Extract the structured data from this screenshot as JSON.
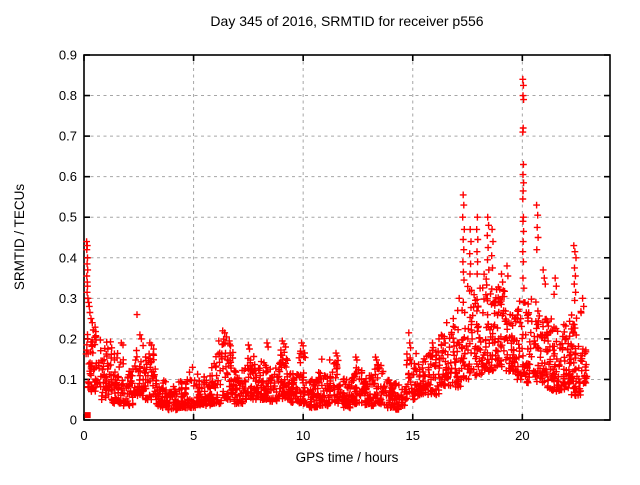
{
  "chart_data": {
    "type": "scatter",
    "title": "Day 345 of 2016, SRMTID for receiver p556",
    "xlabel": "GPS time / hours",
    "ylabel": "SRMTID / TECUs",
    "xlim": [
      0,
      24
    ],
    "ylim": [
      0,
      0.9
    ],
    "xticks": [
      0,
      5,
      10,
      15,
      20
    ],
    "xtick_labels": [
      "0",
      "5",
      "10",
      "15",
      "20"
    ],
    "yticks": [
      0,
      0.1,
      0.2,
      0.3,
      0.4,
      0.5,
      0.6,
      0.7,
      0.8,
      0.9
    ],
    "ytick_labels": [
      "0",
      "0.1",
      "0.2",
      "0.3",
      "0.4",
      "0.5",
      "0.6",
      "0.7",
      "0.8",
      "0.9"
    ],
    "grid": true,
    "legend": "none",
    "marker": "plus",
    "marker_color": "#ff0000",
    "grid_color": "#a6a6a6",
    "axis_color": "#000000",
    "background_color": "#ffffff",
    "origin_square_point": [
      0.17,
      0.012
    ],
    "max_point": [
      20.0,
      0.84
    ],
    "point_bands": [
      [
        0.05,
        0.3,
        0.08,
        0.23,
        14
      ],
      [
        0.3,
        0.8,
        0.07,
        0.23,
        48
      ],
      [
        0.8,
        1.3,
        0.05,
        0.2,
        46
      ],
      [
        1.3,
        1.8,
        0.04,
        0.17,
        44
      ],
      [
        1.8,
        2.3,
        0.035,
        0.13,
        40
      ],
      [
        2.3,
        2.8,
        0.06,
        0.2,
        42
      ],
      [
        2.8,
        3.3,
        0.05,
        0.18,
        42
      ],
      [
        3.3,
        3.8,
        0.03,
        0.1,
        40
      ],
      [
        3.8,
        4.3,
        0.025,
        0.085,
        40
      ],
      [
        4.3,
        4.8,
        0.03,
        0.1,
        40
      ],
      [
        4.8,
        5.3,
        0.03,
        0.12,
        40
      ],
      [
        5.3,
        5.8,
        0.035,
        0.11,
        40
      ],
      [
        5.8,
        6.3,
        0.04,
        0.17,
        42
      ],
      [
        6.3,
        6.8,
        0.05,
        0.2,
        44
      ],
      [
        6.8,
        7.3,
        0.04,
        0.13,
        42
      ],
      [
        7.3,
        7.8,
        0.05,
        0.16,
        42
      ],
      [
        7.8,
        8.3,
        0.05,
        0.145,
        44
      ],
      [
        8.3,
        8.8,
        0.045,
        0.13,
        42
      ],
      [
        8.8,
        9.3,
        0.05,
        0.175,
        44
      ],
      [
        9.3,
        9.8,
        0.04,
        0.12,
        42
      ],
      [
        9.8,
        10.2,
        0.04,
        0.17,
        36
      ],
      [
        10.2,
        10.7,
        0.03,
        0.1,
        44
      ],
      [
        10.7,
        11.2,
        0.035,
        0.12,
        44
      ],
      [
        11.2,
        11.7,
        0.04,
        0.15,
        44
      ],
      [
        11.7,
        12.2,
        0.03,
        0.105,
        44
      ],
      [
        12.2,
        12.7,
        0.04,
        0.13,
        44
      ],
      [
        12.7,
        13.2,
        0.035,
        0.11,
        44
      ],
      [
        13.2,
        13.7,
        0.04,
        0.14,
        42
      ],
      [
        13.7,
        14.2,
        0.03,
        0.1,
        40
      ],
      [
        14.2,
        14.7,
        0.025,
        0.09,
        36
      ],
      [
        14.7,
        15.2,
        0.05,
        0.17,
        36
      ],
      [
        15.2,
        15.7,
        0.06,
        0.16,
        40
      ],
      [
        15.7,
        16.2,
        0.06,
        0.18,
        40
      ],
      [
        16.2,
        16.7,
        0.08,
        0.22,
        44
      ],
      [
        16.7,
        17.2,
        0.08,
        0.25,
        44
      ],
      [
        17.2,
        17.7,
        0.1,
        0.33,
        46
      ],
      [
        17.7,
        18.2,
        0.11,
        0.33,
        46
      ],
      [
        18.2,
        18.7,
        0.12,
        0.36,
        50
      ],
      [
        18.7,
        19.2,
        0.13,
        0.33,
        50
      ],
      [
        19.2,
        19.7,
        0.12,
        0.28,
        46
      ],
      [
        19.7,
        20.2,
        0.1,
        0.3,
        46
      ],
      [
        20.2,
        20.7,
        0.09,
        0.3,
        46
      ],
      [
        20.7,
        21.2,
        0.08,
        0.27,
        50
      ],
      [
        21.2,
        21.7,
        0.07,
        0.25,
        50
      ],
      [
        21.7,
        22.2,
        0.07,
        0.25,
        50
      ],
      [
        22.2,
        22.7,
        0.06,
        0.27,
        55
      ],
      [
        22.7,
        22.95,
        0.09,
        0.19,
        20
      ]
    ],
    "spike_points": [
      [
        0.12,
        0.44
      ],
      [
        0.15,
        0.43
      ],
      [
        0.13,
        0.42
      ],
      [
        0.16,
        0.4
      ],
      [
        0.14,
        0.385
      ],
      [
        0.17,
        0.37
      ],
      [
        0.13,
        0.355
      ],
      [
        0.15,
        0.34
      ],
      [
        0.16,
        0.33
      ],
      [
        0.14,
        0.315
      ],
      [
        0.18,
        0.3
      ],
      [
        0.21,
        0.29
      ],
      [
        0.24,
        0.28
      ],
      [
        0.27,
        0.265
      ],
      [
        0.32,
        0.25
      ],
      [
        0.38,
        0.24
      ],
      [
        1.7,
        0.19
      ],
      [
        1.78,
        0.185
      ],
      [
        2.42,
        0.26
      ],
      [
        2.55,
        0.21
      ],
      [
        2.62,
        0.2
      ],
      [
        3.0,
        0.19
      ],
      [
        3.08,
        0.185
      ],
      [
        4.95,
        0.13
      ],
      [
        6.33,
        0.22
      ],
      [
        6.42,
        0.215
      ],
      [
        6.5,
        0.205
      ],
      [
        6.15,
        0.195
      ],
      [
        7.5,
        0.185
      ],
      [
        7.55,
        0.175
      ],
      [
        8.35,
        0.19
      ],
      [
        8.4,
        0.18
      ],
      [
        9.05,
        0.195
      ],
      [
        9.12,
        0.188
      ],
      [
        9.2,
        0.18
      ],
      [
        9.93,
        0.19
      ],
      [
        10.0,
        0.183
      ],
      [
        10.85,
        0.15
      ],
      [
        11.5,
        0.165
      ],
      [
        11.55,
        0.158
      ],
      [
        12.4,
        0.155
      ],
      [
        12.45,
        0.148
      ],
      [
        13.3,
        0.155
      ],
      [
        13.35,
        0.148
      ],
      [
        14.82,
        0.215
      ],
      [
        14.86,
        0.19
      ],
      [
        14.9,
        0.178
      ],
      [
        15.9,
        0.19
      ],
      [
        16.2,
        0.2
      ],
      [
        16.55,
        0.24
      ],
      [
        16.85,
        0.25
      ],
      [
        17.05,
        0.27
      ],
      [
        17.12,
        0.3
      ],
      [
        17.3,
        0.555
      ],
      [
        17.33,
        0.53
      ],
      [
        17.28,
        0.5
      ],
      [
        17.35,
        0.47
      ],
      [
        17.3,
        0.445
      ],
      [
        17.33,
        0.42
      ],
      [
        17.29,
        0.39
      ],
      [
        17.31,
        0.365
      ],
      [
        17.34,
        0.345
      ],
      [
        17.62,
        0.47
      ],
      [
        17.66,
        0.44
      ],
      [
        17.6,
        0.41
      ],
      [
        17.64,
        0.385
      ],
      [
        17.61,
        0.36
      ],
      [
        17.95,
        0.5
      ],
      [
        17.92,
        0.47
      ],
      [
        17.97,
        0.445
      ],
      [
        17.93,
        0.415
      ],
      [
        17.96,
        0.39
      ],
      [
        17.94,
        0.36
      ],
      [
        18.42,
        0.5
      ],
      [
        18.46,
        0.48
      ],
      [
        18.4,
        0.455
      ],
      [
        18.44,
        0.425
      ],
      [
        18.41,
        0.395
      ],
      [
        18.47,
        0.37
      ],
      [
        18.62,
        0.47
      ],
      [
        18.66,
        0.44
      ],
      [
        18.6,
        0.405
      ],
      [
        18.64,
        0.375
      ],
      [
        19.05,
        0.36
      ],
      [
        19.1,
        0.34
      ],
      [
        19.3,
        0.38
      ],
      [
        19.34,
        0.355
      ],
      [
        20.02,
        0.84
      ],
      [
        20.05,
        0.825
      ],
      [
        20.03,
        0.8
      ],
      [
        20.06,
        0.79
      ],
      [
        20.04,
        0.72
      ],
      [
        20.02,
        0.71
      ],
      [
        20.05,
        0.63
      ],
      [
        20.03,
        0.605
      ],
      [
        20.06,
        0.585
      ],
      [
        20.04,
        0.565
      ],
      [
        20.02,
        0.545
      ],
      [
        20.05,
        0.5
      ],
      [
        20.03,
        0.49
      ],
      [
        20.06,
        0.465
      ],
      [
        20.04,
        0.44
      ],
      [
        20.02,
        0.415
      ],
      [
        20.05,
        0.39
      ],
      [
        20.03,
        0.35
      ],
      [
        20.07,
        0.325
      ],
      [
        20.65,
        0.53
      ],
      [
        20.7,
        0.505
      ],
      [
        20.68,
        0.475
      ],
      [
        20.72,
        0.45
      ],
      [
        20.66,
        0.42
      ],
      [
        20.95,
        0.37
      ],
      [
        21.0,
        0.35
      ],
      [
        21.05,
        0.335
      ],
      [
        21.5,
        0.35
      ],
      [
        21.55,
        0.33
      ],
      [
        21.45,
        0.31
      ],
      [
        22.35,
        0.43
      ],
      [
        22.4,
        0.415
      ],
      [
        22.45,
        0.4
      ],
      [
        22.38,
        0.375
      ],
      [
        22.42,
        0.355
      ],
      [
        22.37,
        0.335
      ],
      [
        22.43,
        0.315
      ],
      [
        22.39,
        0.295
      ],
      [
        22.75,
        0.3
      ],
      [
        22.8,
        0.28
      ]
    ]
  }
}
